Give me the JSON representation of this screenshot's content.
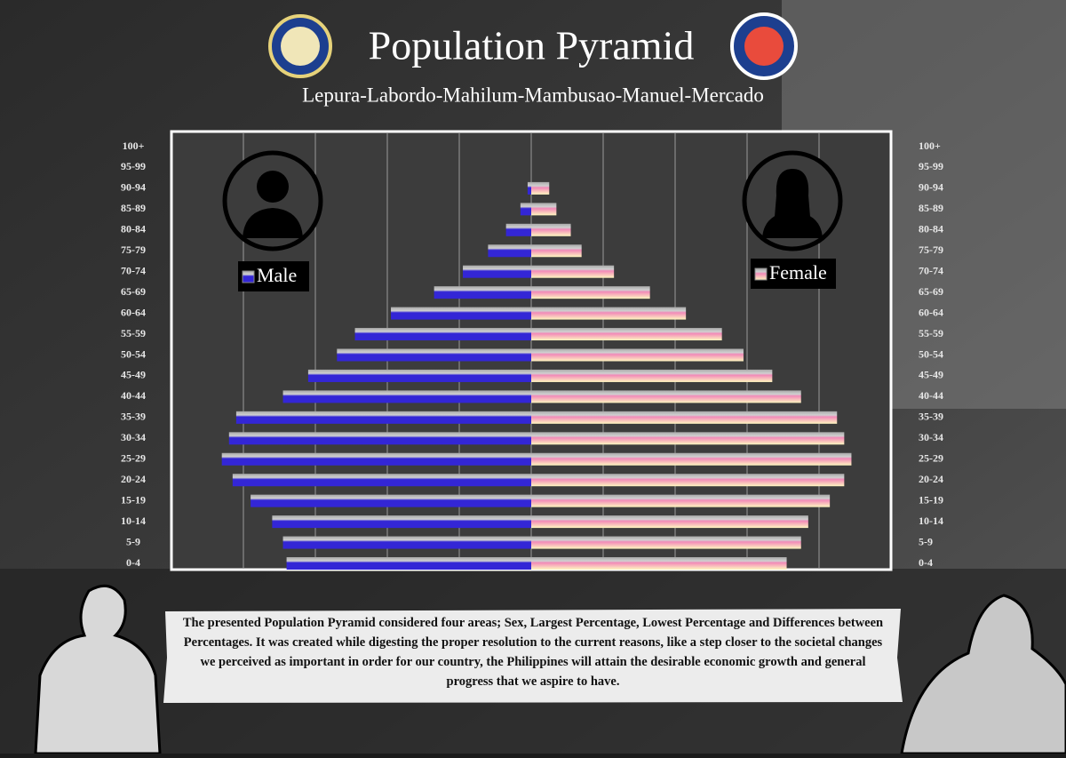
{
  "chart_data": {
    "type": "pyramid",
    "title": "Population Pyramid",
    "subtitle": "Lepura-Labordo-Mahilum-Mambusao-Manuel-Mercado",
    "categories": [
      "0-4",
      "5-9",
      "10-14",
      "15-19",
      "20-24",
      "25-29",
      "30-34",
      "35-39",
      "40-44",
      "45-49",
      "50-54",
      "55-59",
      "60-64",
      "65-69",
      "70-74",
      "75-79",
      "80-84",
      "85-89",
      "90-94",
      "95-99",
      "100+"
    ],
    "series": [
      {
        "name": "Male",
        "color": "#3326d6",
        "side": "left",
        "values": [
          3.4,
          3.45,
          3.6,
          3.9,
          4.15,
          4.3,
          4.2,
          4.1,
          3.45,
          3.1,
          2.7,
          2.45,
          1.95,
          1.35,
          0.95,
          0.6,
          0.35,
          0.15,
          0.05,
          0,
          0
        ]
      },
      {
        "name": "Female",
        "color": "#f28ab8",
        "side": "right",
        "values": [
          3.55,
          3.75,
          3.85,
          4.15,
          4.35,
          4.45,
          4.35,
          4.25,
          3.75,
          3.35,
          2.95,
          2.65,
          2.15,
          1.65,
          1.15,
          0.7,
          0.55,
          0.35,
          0.25,
          0,
          0
        ]
      }
    ],
    "xlim": [
      0,
      5
    ],
    "xticks": [
      1,
      2,
      3,
      4
    ],
    "grid": true,
    "description": "The presented Population Pyramid considered four areas; Sex, Largest Percentage, Lowest Percentage and Differences between Percentages. It was created while digesting the proper resolution to the current reasons, like a step closer to the societal changes we perceived as important in order for our country, the Philippines will attain the desirable economic growth and general progress that we aspire to have."
  }
}
